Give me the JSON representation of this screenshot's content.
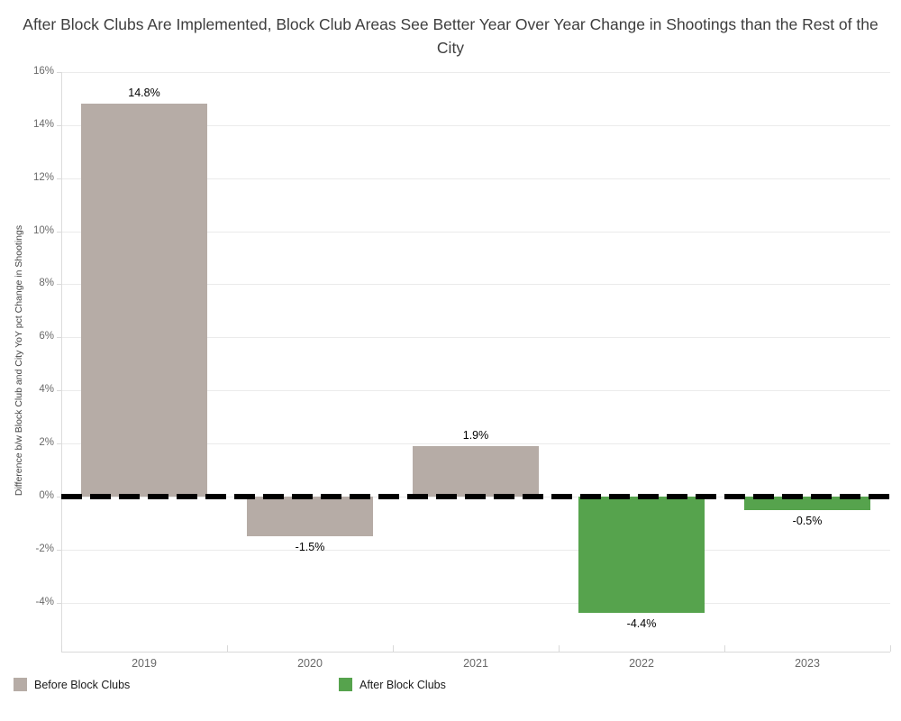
{
  "chart_data": {
    "type": "bar",
    "title": "After Block Clubs Are Implemented, Block Club Areas See Better Year Over Year Change in Shootings than the Rest of the City",
    "xlabel": "",
    "ylabel": "Difference b/w Block Club and City YoY pct Change in Shootings",
    "categories": [
      "2019",
      "2020",
      "2021",
      "2022",
      "2023"
    ],
    "values": [
      14.8,
      -1.5,
      1.9,
      -4.4,
      -0.5
    ],
    "bar_labels": [
      "14.8%",
      "-1.5%",
      "1.9%",
      "-4.4%",
      "-0.5%"
    ],
    "groups": [
      "Before Block Clubs",
      "Before Block Clubs",
      "Before Block Clubs",
      "After Block Clubs",
      "After Block Clubs"
    ],
    "ylim": [
      -5.85,
      16
    ],
    "y_ticks": [
      16,
      14,
      12,
      10,
      8,
      6,
      4,
      2,
      0,
      -2,
      -4
    ],
    "y_tick_labels": [
      "16%",
      "14%",
      "12%",
      "10%",
      "8%",
      "6%",
      "4%",
      "2%",
      "0%",
      "-2%",
      "-4%"
    ],
    "grid": true,
    "zero_line": {
      "style": "dashed",
      "color": "#000000"
    },
    "legend_position": "bottom-left",
    "legend": [
      {
        "label": "Before Block Clubs",
        "color": "#b6aca6"
      },
      {
        "label": "After Block Clubs",
        "color": "#56a34d"
      }
    ]
  },
  "colors": {
    "before_bar": "#b6aca6",
    "after_bar": "#56a34d",
    "zero_line": "#000000",
    "gridline": "#ebebeb",
    "tick_text": "#696969",
    "title_text": "#3d3d3d"
  }
}
